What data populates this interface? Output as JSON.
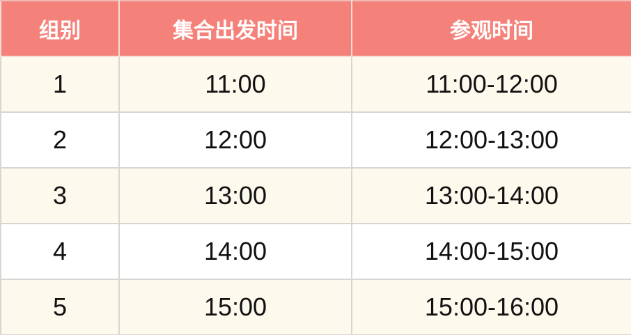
{
  "chart_data": {
    "type": "table",
    "columns": [
      "组别",
      "集合出发时间",
      "参观时间"
    ],
    "rows": [
      [
        "1",
        "11:00",
        "11:00-12:00"
      ],
      [
        "2",
        "12:00",
        "12:00-13:00"
      ],
      [
        "3",
        "13:00",
        "13:00-14:00"
      ],
      [
        "4",
        "14:00",
        "14:00-15:00"
      ],
      [
        "5",
        "15:00",
        "15:00-16:00"
      ]
    ]
  },
  "colors": {
    "header_bg": "#F5827A",
    "header_text": "#FFFFFF",
    "row_alt_bg": "#FDF9EC",
    "row_bg": "#FFFFFF",
    "body_text": "#111111",
    "grid_line": "#D9D6D1",
    "header_line": "#F7DBD5",
    "header_top_line": "#EFBCB5"
  }
}
